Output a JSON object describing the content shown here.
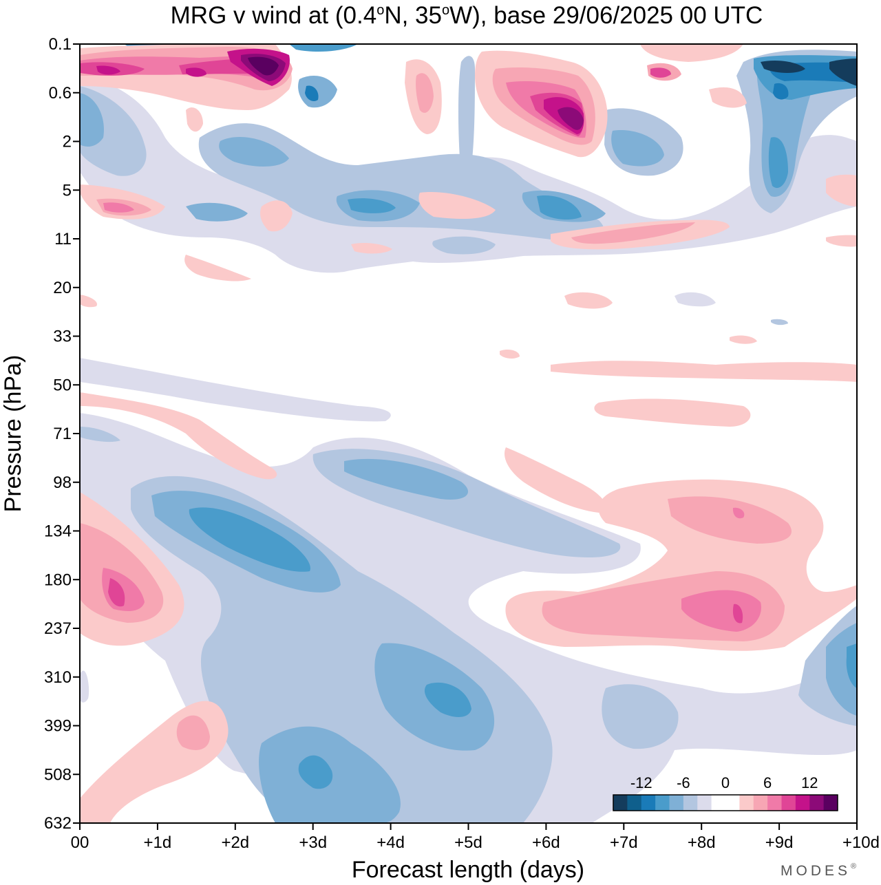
{
  "chart_data": {
    "type": "contour",
    "title": "MRG v wind at (0.4°N, 35°W),  base 29/06/2025  00 UTC",
    "title_parts": {
      "before": "MRG v wind at (0.4",
      "deg1": "o",
      "mid": "N, 35",
      "deg2": "o",
      "after": "W),  base 29/06/2025  00 UTC"
    },
    "xlabel": "Forecast length (days)",
    "ylabel": "Pressure (hPa)",
    "x_ticks": [
      "00",
      "+1d",
      "+2d",
      "+3d",
      "+4d",
      "+5d",
      "+6d",
      "+7d",
      "+8d",
      "+9d",
      "+10d"
    ],
    "xlim_days": [
      0,
      10
    ],
    "y_ticks": [
      "0.1",
      "0.6",
      "2",
      "5",
      "11",
      "20",
      "33",
      "50",
      "71",
      "98",
      "134",
      "180",
      "237",
      "310",
      "399",
      "508",
      "632"
    ],
    "y_scale": "tick labels evenly spaced (model levels)",
    "colorbar": {
      "labels": [
        {
          "text": "-12",
          "slot": 2
        },
        {
          "text": "-6",
          "slot": 5
        },
        {
          "text": "0",
          "slot": 8
        },
        {
          "text": "6",
          "slot": 11
        },
        {
          "text": "12",
          "slot": 14
        }
      ],
      "levels": [
        -16,
        -14,
        -12,
        -10,
        -8,
        -6,
        -4,
        -2,
        2,
        4,
        6,
        8,
        10,
        12,
        14,
        16
      ],
      "colors": [
        "#143c5c",
        "#0f5f8c",
        "#1a7bb8",
        "#4a9ccb",
        "#7fb0d6",
        "#b3c6e0",
        "#dcdcec",
        "#ffffff",
        "#ffffff",
        "#fbcaca",
        "#f7a6b4",
        "#f07aa8",
        "#e04596",
        "#c4128a",
        "#8c0a78",
        "#5a0060"
      ]
    },
    "features": [
      {
        "name": "negative band upper troposphere",
        "x": [
          1.3,
          3.3
        ],
        "level": [
          98,
          180
        ],
        "min": -10
      },
      {
        "name": "negative band around day 4",
        "x": [
          3.8,
          5.0
        ],
        "level": [
          71,
          134
        ],
        "min": -6
      },
      {
        "name": "negative core day 3 lower",
        "x": [
          2.8,
          3.4
        ],
        "level": [
          399,
          508
        ],
        "min": -10
      },
      {
        "name": "negative core day 5 lower",
        "x": [
          4.5,
          5.1
        ],
        "level": [
          310,
          399
        ],
        "min": -10
      },
      {
        "name": "positive lobe day 0-1",
        "x": [
          0.0,
          1.2
        ],
        "level": [
          134,
          237
        ],
        "min": 10
      },
      {
        "name": "positive band days 6-10",
        "x": [
          6.5,
          10.0
        ],
        "level": [
          98,
          237
        ],
        "max": 10
      },
      {
        "name": "strong positive stratosphere day 6",
        "x": [
          5.5,
          6.7
        ],
        "level": [
          0.6,
          2
        ],
        "max": 14
      },
      {
        "name": "strong negative stratosphere day 9-10",
        "x": [
          8.7,
          10.0
        ],
        "level": [
          0.1,
          0.6
        ],
        "max": -14
      }
    ]
  },
  "branding": {
    "logo_text": "MODES",
    "logo_mark": "®"
  }
}
